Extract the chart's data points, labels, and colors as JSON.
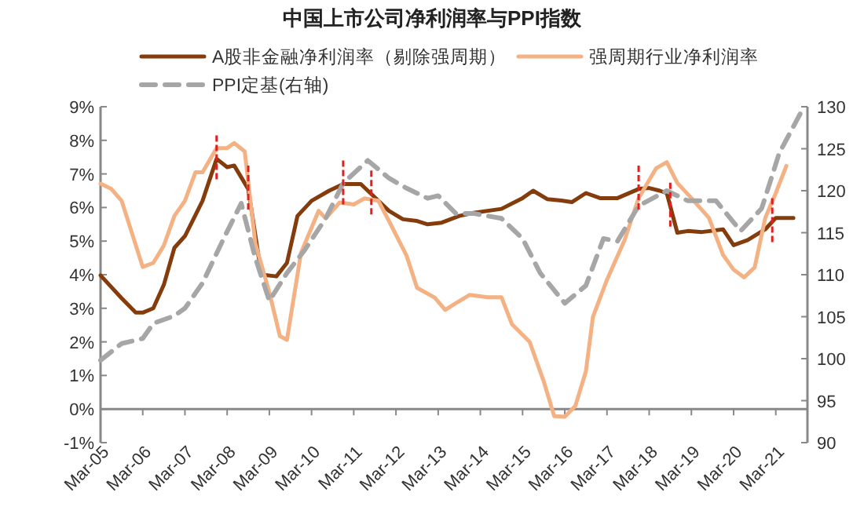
{
  "chart_data": {
    "type": "line",
    "title": "中国上市公司净利润率与PPI指数",
    "legend": "top",
    "grid": false,
    "xlim": [
      "2005-03",
      "2021-12"
    ],
    "xticks": [
      {
        "value": "2005-03",
        "label": "Mar-05"
      },
      {
        "value": "2006-03",
        "label": "Mar-06"
      },
      {
        "value": "2007-03",
        "label": "Mar-07"
      },
      {
        "value": "2008-03",
        "label": "Mar-08"
      },
      {
        "value": "2009-03",
        "label": "Mar-09"
      },
      {
        "value": "2010-03",
        "label": "Mar-10"
      },
      {
        "value": "2011-03",
        "label": "Mar-11"
      },
      {
        "value": "2012-03",
        "label": "Mar-12"
      },
      {
        "value": "2013-03",
        "label": "Mar-13"
      },
      {
        "value": "2014-03",
        "label": "Mar-14"
      },
      {
        "value": "2015-03",
        "label": "Mar-15"
      },
      {
        "value": "2016-03",
        "label": "Mar-16"
      },
      {
        "value": "2017-03",
        "label": "Mar-17"
      },
      {
        "value": "2018-03",
        "label": "Mar-18"
      },
      {
        "value": "2019-03",
        "label": "Mar-19"
      },
      {
        "value": "2020-03",
        "label": "Mar-20"
      },
      {
        "value": "2021-03",
        "label": "Mar-21"
      }
    ],
    "ylim": [
      -1,
      9
    ],
    "yticks": [
      {
        "value": -1,
        "label": "-1%"
      },
      {
        "value": 0,
        "label": "0%"
      },
      {
        "value": 1,
        "label": "1%"
      },
      {
        "value": 2,
        "label": "2%"
      },
      {
        "value": 3,
        "label": "3%"
      },
      {
        "value": 4,
        "label": "4%"
      },
      {
        "value": 5,
        "label": "5%"
      },
      {
        "value": 6,
        "label": "6%"
      },
      {
        "value": 7,
        "label": "7%"
      },
      {
        "value": 8,
        "label": "8%"
      },
      {
        "value": 9,
        "label": "9%"
      }
    ],
    "y2lim": [
      90,
      130
    ],
    "y2ticks": [
      90,
      95,
      100,
      105,
      110,
      115,
      120,
      125,
      130
    ],
    "ref_lines": [
      {
        "axis": "x",
        "value": "2007-12",
        "color": "#e02020",
        "line_style": "dashed"
      },
      {
        "axis": "x",
        "value": "2008-09",
        "color": "#e02020",
        "line_style": "dashed"
      },
      {
        "axis": "x",
        "value": "2010-12",
        "color": "#e02020",
        "line_style": "dashed"
      },
      {
        "axis": "x",
        "value": "2011-08",
        "color": "#e02020",
        "line_style": "dashed"
      },
      {
        "axis": "x",
        "value": "2017-12",
        "color": "#e02020",
        "line_style": "dashed"
      },
      {
        "axis": "x",
        "value": "2018-09",
        "color": "#e02020",
        "line_style": "dashed"
      },
      {
        "axis": "x",
        "value": "2021-02",
        "color": "#e02020",
        "line_style": "dashed"
      }
    ],
    "series": [
      {
        "name": "A股非金融净利润率（剔除强周期）",
        "color": "#843c0c",
        "line_style": "solid",
        "x": [
          "2005-03",
          "2005-09",
          "2006-01",
          "2006-03",
          "2006-06",
          "2006-09",
          "2006-12",
          "2007-03",
          "2007-08",
          "2007-12",
          "2008-03",
          "2008-05",
          "2008-09",
          "2008-12",
          "2009-01",
          "2009-05",
          "2009-08",
          "2009-11",
          "2010-03",
          "2010-08",
          "2010-12",
          "2011-05",
          "2011-08",
          "2012-01",
          "2012-05",
          "2012-09",
          "2012-12",
          "2013-04",
          "2013-09",
          "2014-01",
          "2014-09",
          "2015-03",
          "2015-06",
          "2015-10",
          "2016-02",
          "2016-05",
          "2016-09",
          "2017-01",
          "2017-06",
          "2017-12",
          "2018-03",
          "2018-06",
          "2018-08",
          "2018-11",
          "2019-02",
          "2019-06",
          "2019-12",
          "2020-03",
          "2020-07",
          "2020-12",
          "2021-03",
          "2021-08"
        ],
        "values": [
          3.98,
          3.3,
          2.87,
          2.87,
          3.0,
          3.7,
          4.8,
          5.15,
          6.2,
          7.45,
          7.2,
          7.25,
          6.55,
          4.5,
          4.0,
          3.95,
          4.35,
          5.75,
          6.2,
          6.5,
          6.7,
          6.7,
          6.4,
          5.9,
          5.65,
          5.6,
          5.5,
          5.55,
          5.75,
          5.84,
          5.96,
          6.28,
          6.5,
          6.25,
          6.21,
          6.16,
          6.43,
          6.28,
          6.28,
          6.55,
          6.58,
          6.5,
          6.43,
          5.25,
          5.3,
          5.27,
          5.35,
          4.88,
          5.03,
          5.35,
          5.69,
          5.69
        ]
      },
      {
        "name": "强周期行业净利润率",
        "color": "#f4b183",
        "line_style": "solid",
        "x": [
          "2005-03",
          "2005-06",
          "2005-09",
          "2006-03",
          "2006-06",
          "2006-09",
          "2006-12",
          "2007-03",
          "2007-06",
          "2007-08",
          "2007-12",
          "2008-03",
          "2008-05",
          "2008-08",
          "2008-11",
          "2009-03",
          "2009-06",
          "2009-08",
          "2009-12",
          "2010-05",
          "2010-07",
          "2010-11",
          "2011-03",
          "2011-06",
          "2011-10",
          "2012-01",
          "2012-06",
          "2012-09",
          "2013-02",
          "2013-05",
          "2013-08",
          "2013-12",
          "2014-05",
          "2014-09",
          "2014-12",
          "2015-05",
          "2015-09",
          "2015-12",
          "2016-03",
          "2016-06",
          "2016-09",
          "2016-11",
          "2017-03",
          "2017-08",
          "2017-12",
          "2018-05",
          "2018-08",
          "2018-11",
          "2019-03",
          "2019-08",
          "2019-12",
          "2020-03",
          "2020-06",
          "2020-09",
          "2020-12",
          "2021-03",
          "2021-06"
        ],
        "values": [
          6.71,
          6.56,
          6.2,
          4.23,
          4.35,
          4.87,
          5.75,
          6.2,
          7.05,
          7.05,
          7.77,
          7.77,
          7.92,
          7.67,
          4.94,
          3.47,
          2.17,
          2.06,
          4.65,
          5.9,
          5.68,
          6.15,
          6.09,
          6.27,
          6.2,
          5.6,
          4.57,
          3.61,
          3.32,
          2.95,
          3.15,
          3.4,
          3.33,
          3.33,
          2.52,
          2.0,
          0.83,
          -0.21,
          -0.23,
          0.09,
          1.12,
          2.74,
          3.85,
          5.03,
          6.28,
          7.17,
          7.35,
          6.73,
          6.28,
          5.69,
          4.59,
          4.15,
          3.92,
          4.22,
          5.69,
          6.43,
          7.24
        ]
      },
      {
        "name": "PPI定基(右轴)",
        "color": "#a6a6a6",
        "line_style": "dashed",
        "axis": "y2",
        "x": [
          "2005-03",
          "2005-09",
          "2006-03",
          "2006-06",
          "2006-12",
          "2007-03",
          "2007-08",
          "2008-02",
          "2008-07",
          "2008-11",
          "2009-03",
          "2009-08",
          "2010-01",
          "2010-07",
          "2010-12",
          "2011-07",
          "2012-01",
          "2012-06",
          "2012-12",
          "2013-03",
          "2013-08",
          "2014-01",
          "2014-09",
          "2015-03",
          "2015-08",
          "2016-03",
          "2016-09",
          "2017-02",
          "2017-06",
          "2017-12",
          "2018-08",
          "2019-02",
          "2019-10",
          "2020-05",
          "2020-11",
          "2021-04",
          "2021-10"
        ],
        "values": [
          99.8,
          101.8,
          102.4,
          104.2,
          105.1,
          106.0,
          109.0,
          114.3,
          118.5,
          112.0,
          106.9,
          110.2,
          112.9,
          116.7,
          120.9,
          123.6,
          121.5,
          120.3,
          119.1,
          119.4,
          117.3,
          117.3,
          116.7,
          114.3,
          110.2,
          106.6,
          108.7,
          114.3,
          114.0,
          118.2,
          120.0,
          118.8,
          118.8,
          115.2,
          117.9,
          124.5,
          129.2
        ]
      }
    ]
  }
}
